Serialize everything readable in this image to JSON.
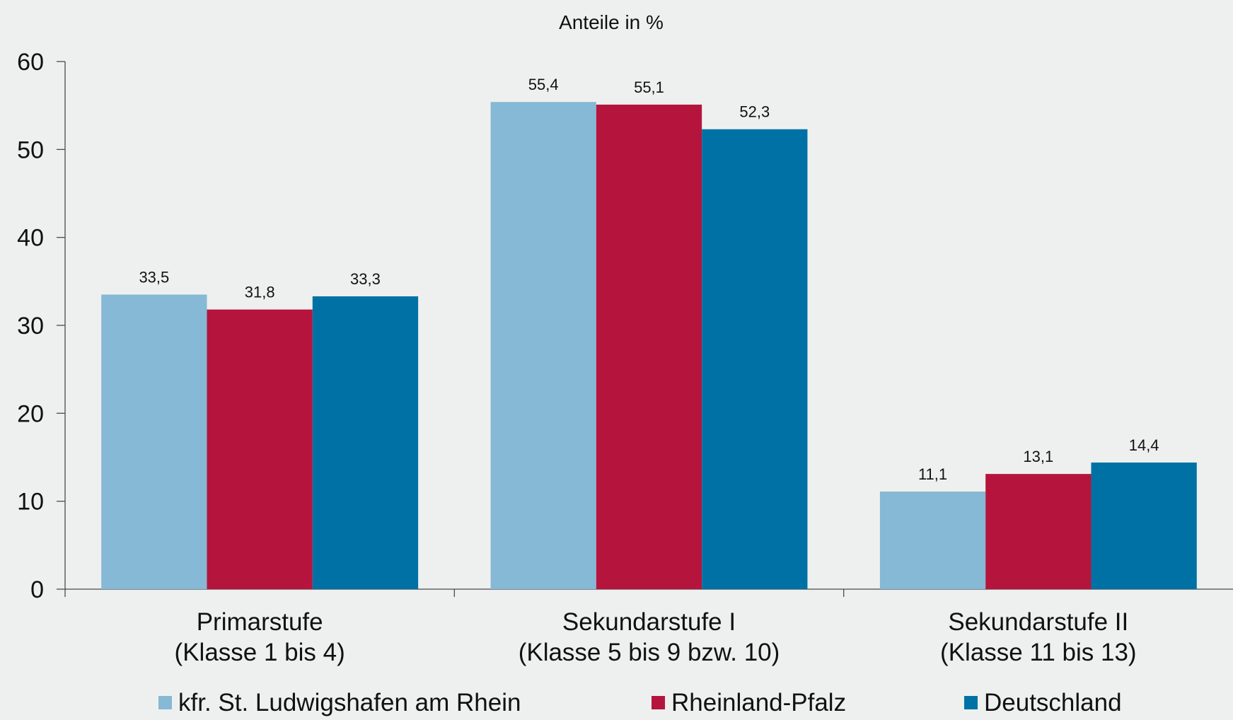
{
  "chart_data": {
    "type": "bar",
    "title": "Anteile in %",
    "categories": [
      [
        "Primarstufe",
        "(Klasse 1 bis 4)"
      ],
      [
        "Sekundarstufe I",
        "(Klasse 5 bis 9 bzw. 10)"
      ],
      [
        "Sekundarstufe II",
        "(Klasse 11 bis 13)"
      ]
    ],
    "series": [
      {
        "name": "kfr. St. Ludwigshafen am Rhein",
        "color": "#85b9d5",
        "values": [
          33.5,
          55.4,
          11.1
        ],
        "labels": [
          "33,5",
          "55,4",
          "11,1"
        ]
      },
      {
        "name": "Rheinland-Pfalz",
        "color": "#b5153c",
        "values": [
          31.8,
          55.1,
          13.1
        ],
        "labels": [
          "31,8",
          "55,1",
          "13,1"
        ]
      },
      {
        "name": "Deutschland",
        "color": "#0071a4",
        "values": [
          33.3,
          52.3,
          14.4
        ],
        "labels": [
          "33,3",
          "52,3",
          "14,4"
        ]
      }
    ],
    "ylim": [
      0,
      60
    ],
    "yticks": [
      0,
      10,
      20,
      30,
      40,
      50,
      60
    ],
    "ytick_labels": [
      "0",
      "10",
      "20",
      "30",
      "40",
      "50",
      "60"
    ],
    "grid": false,
    "legend_position": "bottom"
  }
}
